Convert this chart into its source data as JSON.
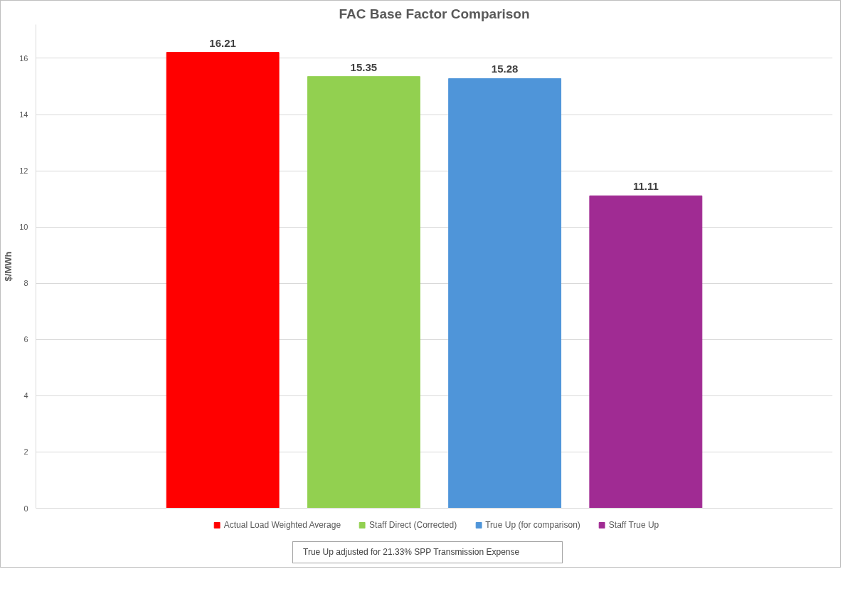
{
  "chart_data": {
    "type": "bar",
    "title": "FAC Base Factor Comparison",
    "ylabel": "$/MWh",
    "categories": [
      null
    ],
    "series": [
      {
        "name": "Actual Load Weighted Average",
        "color": "#ff0000",
        "values": [
          16.21
        ]
      },
      {
        "name": "Staff Direct (Corrected)",
        "color": "#92d050",
        "values": [
          15.35
        ]
      },
      {
        "name": "True Up (for comparison)",
        "color": "#4f95d9",
        "values": [
          15.28
        ]
      },
      {
        "name": "Staff True Up",
        "color": "#a02b93",
        "values": [
          11.11
        ]
      }
    ],
    "ylim": [
      0,
      17.2
    ],
    "yticks": [
      0,
      2,
      4,
      6,
      8,
      10,
      12,
      14,
      16
    ],
    "grid": "y",
    "legend": "bottom",
    "data_labels": true,
    "annotations": [
      "True Up adjusted for 21.33% SPP Transmission Expense"
    ]
  }
}
